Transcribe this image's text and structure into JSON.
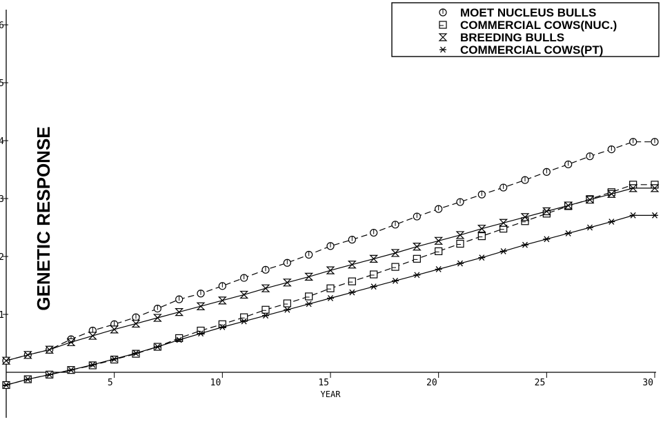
{
  "chart_data": {
    "type": "line",
    "xlabel": "YEAR",
    "ylabel": "GENETIC RESPONSE",
    "xlim": [
      0,
      30
    ],
    "ylim": [
      -1.2,
      6
    ],
    "x_ticks": [
      "5",
      "10",
      "15",
      "20",
      "25",
      "30"
    ],
    "y_ticks": [
      "1",
      "2",
      "3",
      "4",
      "5",
      "6"
    ],
    "grid": false,
    "legend_position": "top-right",
    "x": [
      0,
      1,
      2,
      3,
      4,
      5,
      6,
      7,
      8,
      9,
      10,
      11,
      12,
      13,
      14,
      15,
      16,
      17,
      18,
      19,
      20,
      21,
      22,
      23,
      24,
      25,
      26,
      27,
      28,
      29,
      30
    ],
    "series": [
      {
        "name": "MOET NUCLEUS BULLS",
        "marker": "circle",
        "dashed": true,
        "values": [
          0.2,
          0.3,
          0.39,
          0.57,
          0.72,
          0.83,
          0.95,
          1.1,
          1.26,
          1.36,
          1.49,
          1.63,
          1.77,
          1.89,
          2.03,
          2.18,
          2.29,
          2.41,
          2.55,
          2.69,
          2.82,
          2.94,
          3.07,
          3.19,
          3.32,
          3.46,
          3.59,
          3.73,
          3.85,
          3.98,
          3.98
        ]
      },
      {
        "name": "COMMERCIAL COWS(NUC.)",
        "marker": "square",
        "dashed": true,
        "values": [
          -0.22,
          -0.12,
          -0.04,
          0.04,
          0.12,
          0.22,
          0.32,
          0.44,
          0.59,
          0.72,
          0.83,
          0.95,
          1.08,
          1.19,
          1.31,
          1.45,
          1.57,
          1.69,
          1.82,
          1.96,
          2.09,
          2.22,
          2.35,
          2.48,
          2.61,
          2.74,
          2.87,
          2.99,
          3.11,
          3.24,
          3.24
        ]
      },
      {
        "name": "BREEDING BULLS",
        "marker": "hourglass",
        "dashed": false,
        "values": [
          0.2,
          0.3,
          0.39,
          0.52,
          0.63,
          0.74,
          0.84,
          0.94,
          1.04,
          1.14,
          1.24,
          1.34,
          1.45,
          1.55,
          1.65,
          1.76,
          1.86,
          1.96,
          2.06,
          2.17,
          2.27,
          2.37,
          2.48,
          2.58,
          2.68,
          2.78,
          2.88,
          2.98,
          3.08,
          3.18,
          3.18
        ]
      },
      {
        "name": "COMMERCIAL COWS(PT)",
        "marker": "asterisk",
        "dashed": false,
        "values": [
          -0.22,
          -0.12,
          -0.04,
          0.04,
          0.13,
          0.23,
          0.33,
          0.44,
          0.56,
          0.67,
          0.78,
          0.88,
          0.98,
          1.08,
          1.18,
          1.28,
          1.38,
          1.48,
          1.58,
          1.68,
          1.78,
          1.88,
          1.98,
          2.09,
          2.2,
          2.3,
          2.4,
          2.5,
          2.6,
          2.71,
          2.71
        ]
      }
    ]
  }
}
